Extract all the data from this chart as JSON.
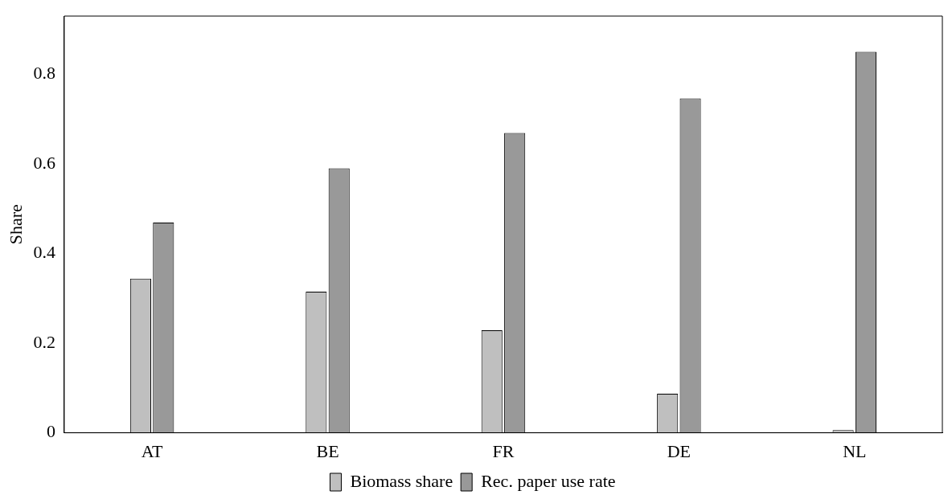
{
  "chart_data": {
    "type": "bar",
    "ylabel": "Share",
    "categories": [
      "AT",
      "BE",
      "FR",
      "DE",
      "NL"
    ],
    "series": [
      {
        "name": "Biomass share",
        "color": "#bfbfbf",
        "values": [
          0.344,
          0.315,
          0.229,
          0.087,
          0.006
        ]
      },
      {
        "name": "Rec. paper use rate",
        "color": "#999999",
        "values": [
          0.469,
          0.59,
          0.669,
          0.746,
          0.85
        ]
      }
    ],
    "ylim": [
      0,
      0.93
    ],
    "yticks": [
      0,
      0.2,
      0.4,
      0.6,
      0.8
    ],
    "grid": false,
    "legend": "bottom"
  }
}
